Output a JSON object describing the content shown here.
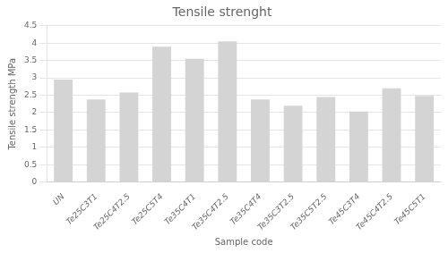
{
  "chart_data": {
    "type": "bar",
    "title": "Tensile strenght",
    "xlabel": "Sample code",
    "ylabel": "Tensile strength MPa",
    "categories": [
      "UN",
      "Te25C3T1",
      "Te25C4T2.5",
      "Te25C5T4",
      "Te35C4T1",
      "Te35C4T2.5",
      "Te35C4T4",
      "Te35C3T2.5",
      "Te35C5T2.5",
      "Te45C3T4",
      "Te45C4T2.5",
      "Te45C5T1"
    ],
    "values": [
      2.95,
      2.38,
      2.58,
      3.9,
      3.55,
      4.05,
      2.38,
      2.2,
      2.45,
      2.03,
      2.7,
      2.48
    ],
    "color": "#d4d4d4",
    "ylim": [
      0,
      4.5
    ],
    "yticks": [
      0,
      0.5,
      1.0,
      1.5,
      2.0,
      2.5,
      3.0,
      3.5,
      4.0,
      4.5
    ],
    "grid": true
  }
}
